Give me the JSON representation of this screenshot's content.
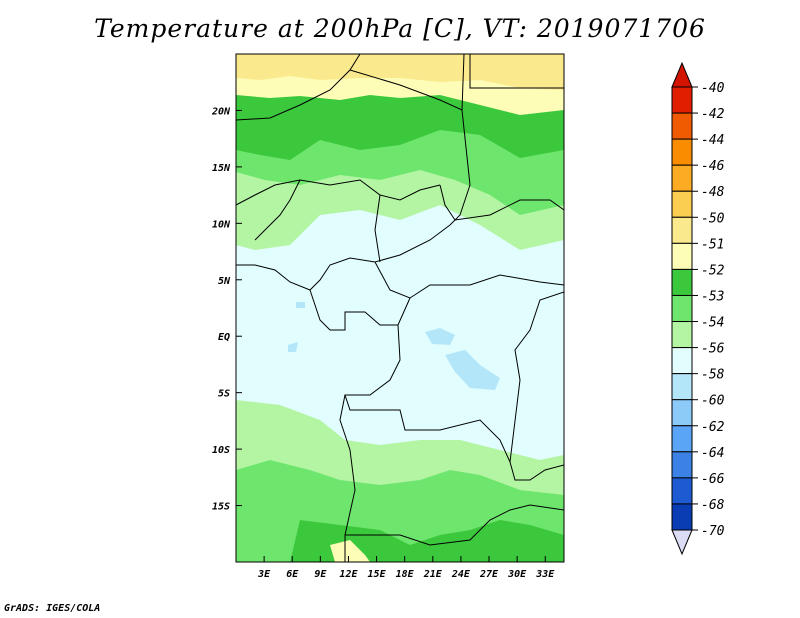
{
  "title": "Temperature at 200hPa [C], VT: 2019071706",
  "credit": "GrADS: IGES/COLA",
  "map": {
    "lon_range": [
      0,
      35
    ],
    "lat_range": [
      -20,
      25
    ],
    "lat_labels": [
      {
        "lat": 20,
        "label": "20N"
      },
      {
        "lat": 15,
        "label": "15N"
      },
      {
        "lat": 10,
        "label": "10N"
      },
      {
        "lat": 5,
        "label": "5N"
      },
      {
        "lat": 0,
        "label": "EQ"
      },
      {
        "lat": -5,
        "label": "5S"
      },
      {
        "lat": -10,
        "label": "10S"
      },
      {
        "lat": -15,
        "label": "15S"
      }
    ],
    "lon_labels": [
      {
        "lon": 3,
        "label": "3E"
      },
      {
        "lon": 6,
        "label": "6E"
      },
      {
        "lon": 9,
        "label": "9E"
      },
      {
        "lon": 12,
        "label": "12E"
      },
      {
        "lon": 15,
        "label": "15E"
      },
      {
        "lon": 18,
        "label": "18E"
      },
      {
        "lon": 21,
        "label": "21E"
      },
      {
        "lon": 24,
        "label": "24E"
      },
      {
        "lon": 27,
        "label": "27E"
      },
      {
        "lon": 30,
        "label": "30E"
      },
      {
        "lon": 33,
        "label": "33E"
      }
    ]
  },
  "colorbar": {
    "levels": [
      "-40",
      "-42",
      "-44",
      "-46",
      "-48",
      "-50",
      "-51",
      "-52",
      "-53",
      "-54",
      "-56",
      "-58",
      "-60",
      "-62",
      "-64",
      "-66",
      "-68",
      "-70"
    ],
    "colors": [
      "#e11e00",
      "#f05a00",
      "#fa8c00",
      "#fcab22",
      "#fbcd50",
      "#fbe98e",
      "#fdfdb7",
      "#3cc83c",
      "#6ee66e",
      "#b4f5a4",
      "#e1fdfd",
      "#b4e6fa",
      "#8ccaf8",
      "#5aa5f5",
      "#3c82e6",
      "#1e5ad2",
      "#0a3cb4",
      "#00148c"
    ],
    "top_color": "#d21400",
    "bottom_color": "#dcdcf5"
  }
}
